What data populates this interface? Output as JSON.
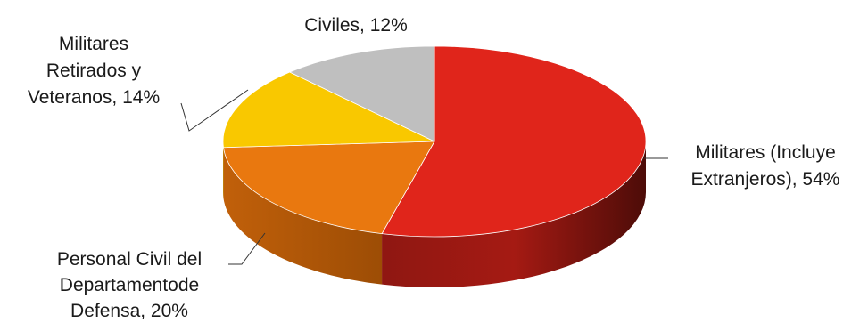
{
  "chart_data": {
    "type": "pie",
    "variant": "3d",
    "title": "",
    "slices": [
      {
        "label": "Militares (Incluye Extranjeros), 54%",
        "lines": [
          "Militares (Incluye",
          "Extranjeros), 54%"
        ],
        "value": 54,
        "color": "#e0251b"
      },
      {
        "label": "Personal Civil del Departamentode Defensa, 20%",
        "lines": [
          "Personal Civil del",
          "Departamentode",
          "Defensa, 20%"
        ],
        "value": 20,
        "color": "#e9780f"
      },
      {
        "label": "Militares Retirados y Veteranos, 14%",
        "lines": [
          "Militares",
          "Retirados y",
          "Veteranos, 14%"
        ],
        "value": 14,
        "color": "#f9c800"
      },
      {
        "label": "Civiles, 12%",
        "lines": [
          "Civiles, 12%"
        ],
        "value": 12,
        "color": "#bfbfbf"
      }
    ],
    "legend": "none"
  }
}
